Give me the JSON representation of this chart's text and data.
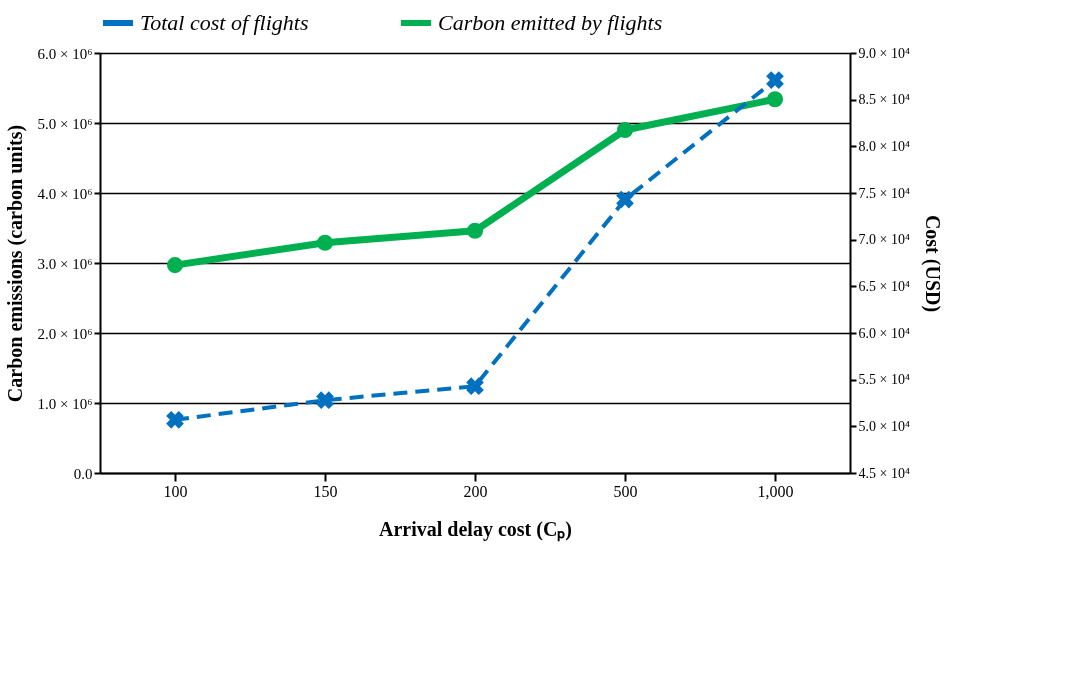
{
  "chart_data": {
    "type": "line",
    "xlabel": "Arrival delay cost (Cₚ)",
    "ylabel": "Carbon emissions (carbon units)",
    "y2label": "Cost (USD)",
    "categories": [
      "100",
      "150",
      "200",
      "500",
      "1,000"
    ],
    "series": [
      {
        "name": "Total cost of flights",
        "color": "#0070c0",
        "marker": "cross",
        "line_style": "dashed",
        "axis": "y2",
        "values": [
          50700,
          52800,
          54300,
          74300,
          87100
        ]
      },
      {
        "name": "Carbon emitted by flights",
        "color": "#00b050",
        "marker": "circle",
        "line_style": "solid",
        "values": [
          2970000,
          3290000,
          3460000,
          4900000,
          5340000
        ]
      }
    ],
    "ylim": [
      0,
      6000000
    ],
    "yticks": [
      {
        "value": 0,
        "label": "0.0"
      },
      {
        "value": 1000000,
        "label": "1.0 × 10⁶"
      },
      {
        "value": 2000000,
        "label": "2.0 × 10⁶"
      },
      {
        "value": 3000000,
        "label": "3.0 × 10⁶"
      },
      {
        "value": 4000000,
        "label": "4.0 × 10⁶"
      },
      {
        "value": 5000000,
        "label": "5.0 × 10⁶"
      },
      {
        "value": 6000000,
        "label": "6.0 × 10⁶"
      }
    ],
    "y2lim": [
      45000,
      90000
    ],
    "y2ticks": [
      {
        "value": 45000,
        "label": "4.5 × 10⁴"
      },
      {
        "value": 50000,
        "label": "5.0 × 10⁴"
      },
      {
        "value": 55000,
        "label": "5.5 × 10⁴"
      },
      {
        "value": 60000,
        "label": "6.0 × 10⁴"
      },
      {
        "value": 65000,
        "label": "6.5 × 10⁴"
      },
      {
        "value": 70000,
        "label": "7.0 × 10⁴"
      },
      {
        "value": 75000,
        "label": "7.5 × 10⁴"
      },
      {
        "value": 80000,
        "label": "8.0 × 10⁴"
      },
      {
        "value": 85000,
        "label": "8.5 × 10⁴"
      },
      {
        "value": 90000,
        "label": "9.0 × 10⁴"
      }
    ],
    "grid": "y",
    "legend": "top"
  }
}
